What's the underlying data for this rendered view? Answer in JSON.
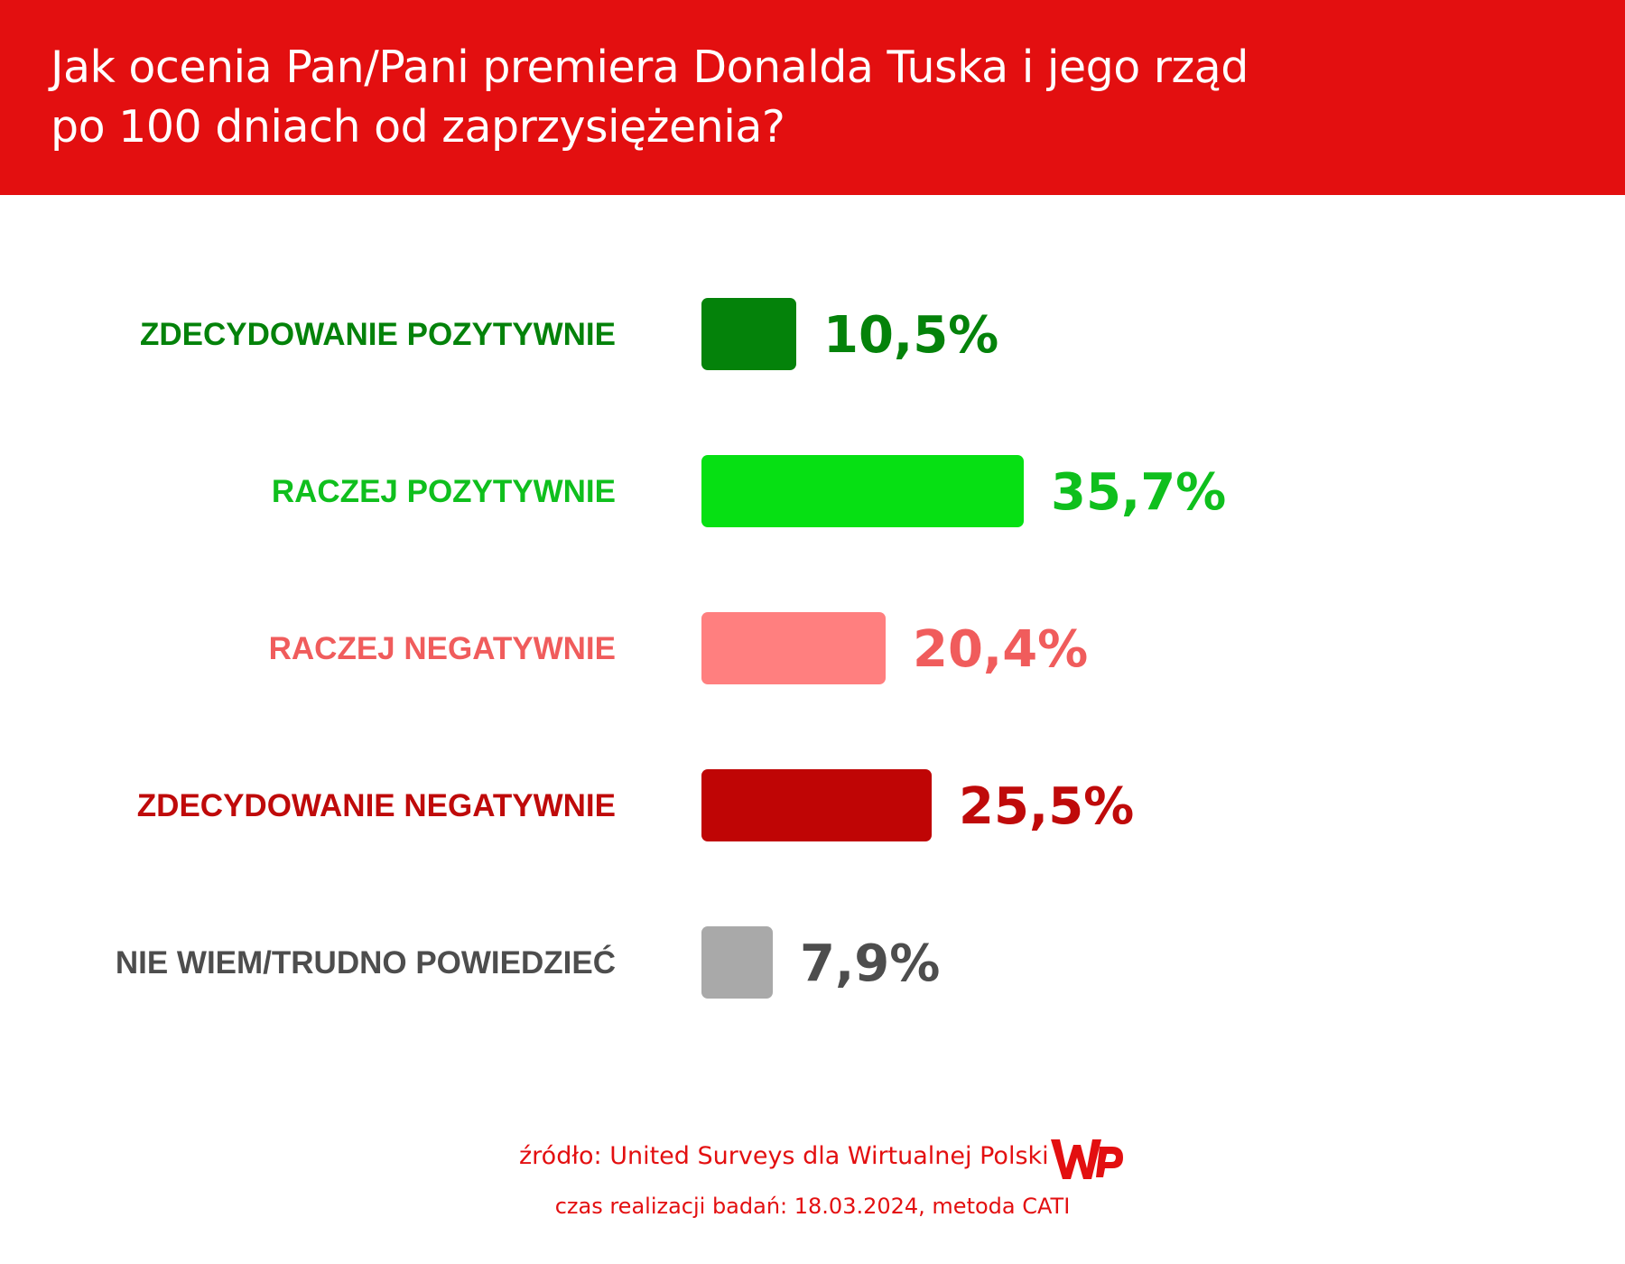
{
  "header": {
    "title_line1": "Jak ocenia Pan/Pani premiera Donalda Tuska i jego rząd",
    "title_line2": "po 100 dniach od zaprzysiężenia?"
  },
  "chart_data": {
    "type": "bar",
    "orientation": "horizontal",
    "title": "Jak ocenia Pan/Pani premiera Donalda Tuska i jego rząd po 100 dniach od zaprzysiężenia?",
    "categories": [
      "ZDECYDOWANIE POZYTYWNIE",
      "RACZEJ POZYTYWNIE",
      "RACZEJ NEGATYWNIE",
      "ZDECYDOWANIE NEGATYWNIE",
      "NIE WIEM/TRUDNO POWIEDZIEĆ"
    ],
    "values": [
      10.5,
      35.7,
      20.4,
      25.5,
      7.9
    ],
    "value_labels": [
      "10,5%",
      "35,7%",
      "20,4%",
      "25,5%",
      "7,9%"
    ],
    "colors": [
      "#04820a",
      "#06e013",
      "#ff7f7f",
      "#bf0505",
      "#a9a9a9"
    ],
    "label_colors": [
      "#04820a",
      "#0fbf1d",
      "#f05c5c",
      "#bf0a0a",
      "#4d4d4d"
    ],
    "xlabel": "",
    "ylabel": "",
    "unit": "%",
    "grid": false,
    "legend": "none"
  },
  "footer": {
    "source": "źródło: United Surveys dla Wirtualnej Polski",
    "time": "czas realizacji badań: 18.03.2024, metoda CATI",
    "logo_text": "WP",
    "brand_color": "#e30f10"
  }
}
